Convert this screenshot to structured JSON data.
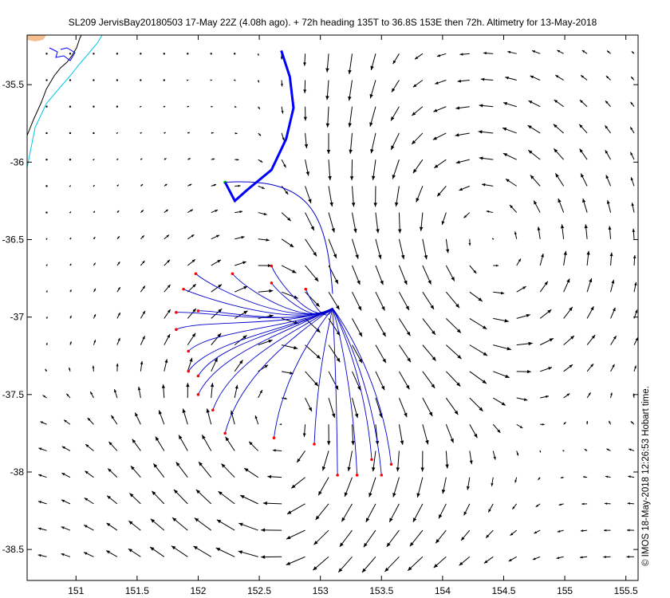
{
  "title": "SL209 JervisBay20180503 17-May 22Z (4.08h ago). + 72h heading 135T to 36.8S 153E then 72h. Altimetry for 13-May-2018",
  "credit": "© IMOS 18-May-2018 12:26:53 Hobart time.",
  "colors": {
    "coast": "#000000",
    "isobath": "#00c8e6",
    "track": "#0000ff",
    "projection": "#0000cc",
    "endpoint": "#ff0000",
    "arrows": "#000000",
    "land": "#f5c090"
  },
  "axes": {
    "x_ticks": [
      "151",
      "151.5",
      "152",
      "152.5",
      "153",
      "153.5",
      "154",
      "154.5",
      "155",
      "155.5"
    ],
    "y_ticks": [
      "-35.5",
      "-36",
      "-36.5",
      "-37",
      "-37.5",
      "-38",
      "-38.5"
    ],
    "xlim": [
      150.6,
      155.6
    ],
    "ylim": [
      -38.7,
      -35.18
    ]
  },
  "map_data": {
    "type": "current-vector-map",
    "start": {
      "lon": 153.1,
      "lat": -36.85
    },
    "glider_track": [
      [
        152.68,
        -35.28
      ],
      [
        152.75,
        -35.45
      ],
      [
        152.78,
        -35.65
      ],
      [
        152.72,
        -35.85
      ],
      [
        152.6,
        -36.05
      ],
      [
        152.4,
        -36.18
      ],
      [
        152.3,
        -36.25
      ],
      [
        152.22,
        -36.13
      ]
    ],
    "projection_ends": [
      [
        151.98,
        -36.72
      ],
      [
        152.28,
        -36.72
      ],
      [
        152.6,
        -36.78
      ],
      [
        152.88,
        -36.82
      ],
      [
        151.88,
        -36.82
      ],
      [
        151.82,
        -36.97
      ],
      [
        151.82,
        -37.08
      ],
      [
        151.92,
        -37.22
      ],
      [
        151.92,
        -37.35
      ],
      [
        152.0,
        -37.38
      ],
      [
        152.0,
        -37.5
      ],
      [
        152.12,
        -37.6
      ],
      [
        152.22,
        -37.75
      ],
      [
        152.62,
        -37.78
      ],
      [
        152.95,
        -37.82
      ],
      [
        153.14,
        -38.02
      ],
      [
        153.3,
        -38.02
      ],
      [
        153.5,
        -38.02
      ],
      [
        153.42,
        -37.92
      ],
      [
        153.58,
        -37.95
      ],
      [
        152.0,
        -36.96
      ],
      [
        152.6,
        -36.67
      ]
    ]
  }
}
